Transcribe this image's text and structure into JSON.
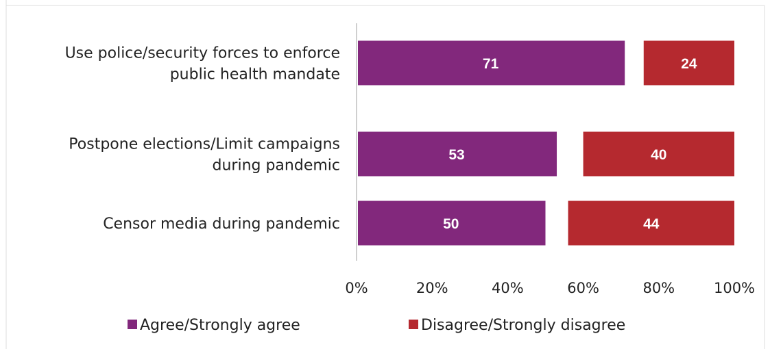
{
  "colors": {
    "agree": "#82287c",
    "disagree": "#b5292f",
    "axis": "#cfcfcf",
    "frame": "#d9d9d9"
  },
  "chart_data": {
    "type": "bar",
    "orientation": "horizontal",
    "stacked": true,
    "categories": [
      [
        "Use police/security forces to enforce",
        "public health mandate"
      ],
      [
        "Postpone elections/Limit campaigns",
        "during pandemic"
      ],
      [
        "Censor media during pandemic"
      ]
    ],
    "series": [
      {
        "name": "Agree/Strongly agree",
        "values": [
          71,
          53,
          50
        ],
        "layout": "from-start"
      },
      {
        "name": "Disagree/Strongly disagree",
        "values": [
          24,
          40,
          44
        ],
        "layout": "from-end"
      }
    ],
    "x_ticks": [
      "0%",
      "20%",
      "40%",
      "60%",
      "80%",
      "100%"
    ],
    "xlim": [
      0,
      100
    ],
    "grid": false,
    "legend_position": "bottom"
  }
}
